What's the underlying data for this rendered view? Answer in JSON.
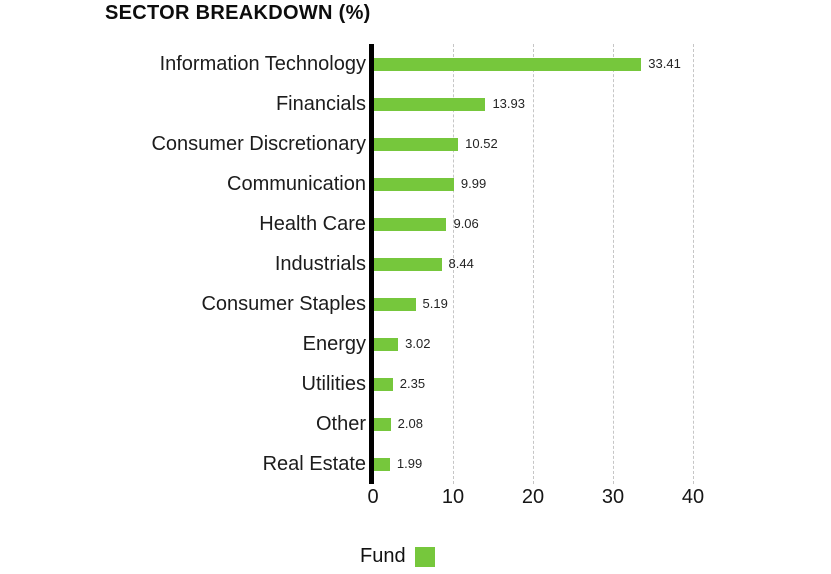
{
  "title": "SECTOR BREAKDOWN (%)",
  "colors": {
    "bar_green": "#76c73c",
    "axis_black": "#000000",
    "gridline_gray": "#c6c6c6",
    "text_dark": "#1c1c1c",
    "background": "#ffffff"
  },
  "chart_data": {
    "type": "bar",
    "orientation": "horizontal",
    "title": "SECTOR BREAKDOWN (%)",
    "categories": [
      "Information Technology",
      "Financials",
      "Consumer Discretionary",
      "Communication",
      "Health Care",
      "Industrials",
      "Consumer Staples",
      "Energy",
      "Utilities",
      "Other",
      "Real Estate"
    ],
    "series": [
      {
        "name": "Fund",
        "values": [
          33.41,
          13.93,
          10.52,
          9.99,
          9.06,
          8.44,
          5.19,
          3.02,
          2.35,
          2.08,
          1.99
        ]
      }
    ],
    "value_labels": [
      "33.41",
      "13.93",
      "10.52",
      "9.99",
      "9.06",
      "8.44",
      "5.19",
      "3.02",
      "2.35",
      "2.08",
      "1.99"
    ],
    "xlabel": "",
    "ylabel": "",
    "xlim": [
      0,
      40
    ],
    "xticks": [
      0,
      10,
      20,
      30,
      40
    ],
    "grid": "vertical-dotted",
    "legend_position": "bottom"
  },
  "legend": {
    "label": "Fund"
  }
}
